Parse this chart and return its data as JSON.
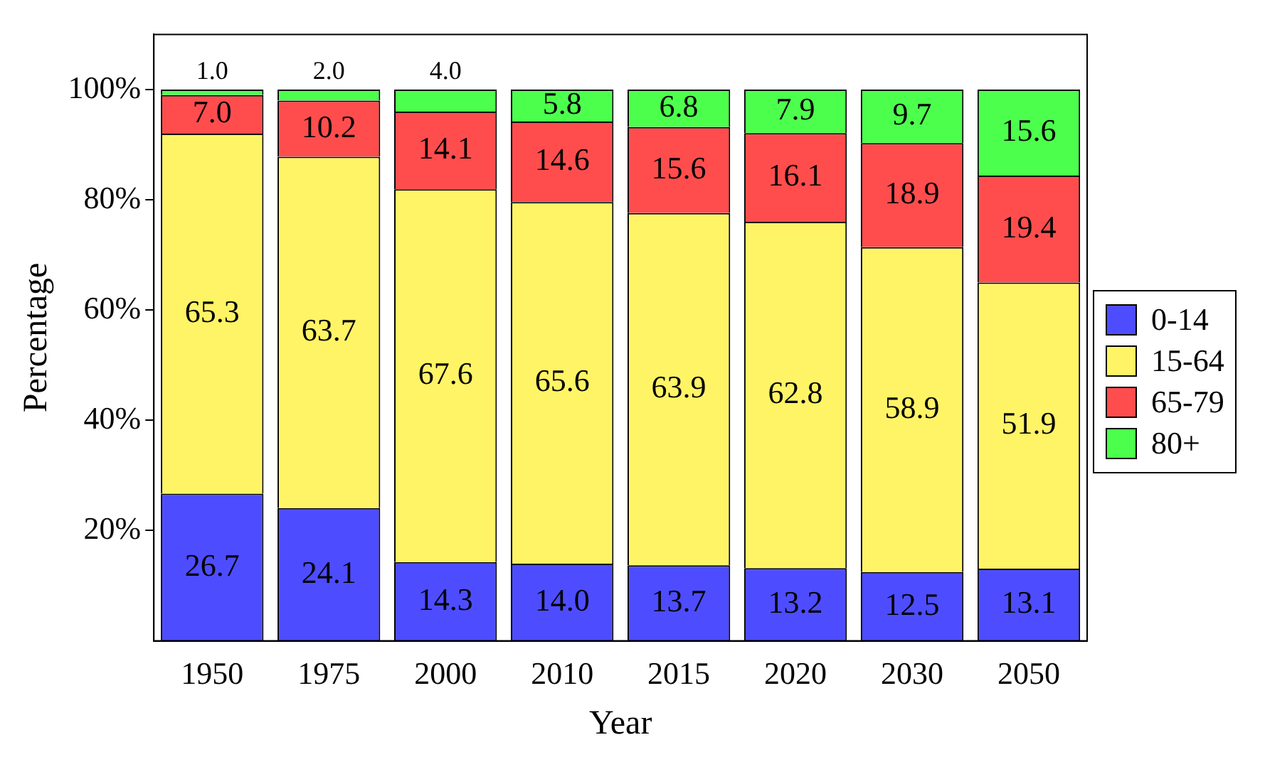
{
  "chart_data": {
    "type": "bar",
    "stacked": true,
    "xlabel": "Year",
    "ylabel": "Percentage",
    "categories": [
      "1950",
      "1975",
      "2000",
      "2010",
      "2015",
      "2020",
      "2030",
      "2050"
    ],
    "series": [
      {
        "name": "0-14",
        "color": "#4d4dff",
        "values": [
          26.7,
          24.1,
          14.3,
          14.0,
          13.7,
          13.2,
          12.5,
          13.1
        ],
        "value_labels": [
          "26.7",
          "24.1",
          "14.3",
          "14.0",
          "13.7",
          "13.2",
          "12.5",
          "13.1"
        ]
      },
      {
        "name": "15-64",
        "color": "#fff466",
        "values": [
          65.3,
          63.7,
          67.6,
          65.6,
          63.9,
          62.8,
          58.9,
          51.9
        ],
        "value_labels": [
          "65.3",
          "63.7",
          "67.6",
          "65.6",
          "63.9",
          "62.8",
          "58.9",
          "51.9"
        ]
      },
      {
        "name": "65-79",
        "color": "#ff4d4d",
        "values": [
          7.0,
          10.2,
          14.1,
          14.6,
          15.6,
          16.1,
          18.9,
          19.4
        ],
        "value_labels": [
          "7.0",
          "10.2",
          "14.1",
          "14.6",
          "15.6",
          "16.1",
          "18.9",
          "19.4"
        ]
      },
      {
        "name": "80+",
        "color": "#4dff4d",
        "values": [
          1.0,
          2.0,
          4.0,
          5.8,
          6.8,
          7.9,
          9.7,
          15.6
        ],
        "value_labels": [
          "1.0",
          "2.0",
          "4.0",
          "5.8",
          "6.8",
          "7.9",
          "9.7",
          "15.6"
        ]
      }
    ],
    "ylim": [
      0,
      110
    ],
    "yticks": [
      {
        "value": 20,
        "label": "20%"
      },
      {
        "value": 40,
        "label": "40%"
      },
      {
        "value": 60,
        "label": "60%"
      },
      {
        "value": 80,
        "label": "80%"
      },
      {
        "value": 100,
        "label": "100%"
      }
    ],
    "grid": false,
    "legend": "right"
  }
}
